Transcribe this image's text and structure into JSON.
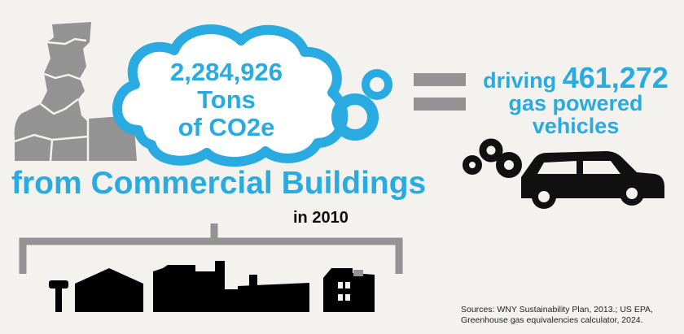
{
  "emissions": {
    "amount": "2,284,926",
    "unit": "Tons",
    "gas": "of CO2e"
  },
  "equivalent": {
    "prefix": "driving",
    "count": "461,272",
    "line2": "gas powered",
    "line3": "vehicles"
  },
  "headline": "from Commercial Buildings",
  "year": "in 2010",
  "sources": "Sources: WNY Sustainability Plan, 2013.; US EPA, Greenhouse gas equivalencies calculator, 2024.",
  "icons": [
    "factory-chimney-icon",
    "emission-cloud-icon",
    "equals-icon",
    "car-icon",
    "exhaust-puff-icon",
    "building-icon",
    "mailbox-icon"
  ],
  "colors": {
    "accent": "#29aae1",
    "gray": "#939393",
    "dark": "#111111",
    "background": "#f3f2ee"
  }
}
